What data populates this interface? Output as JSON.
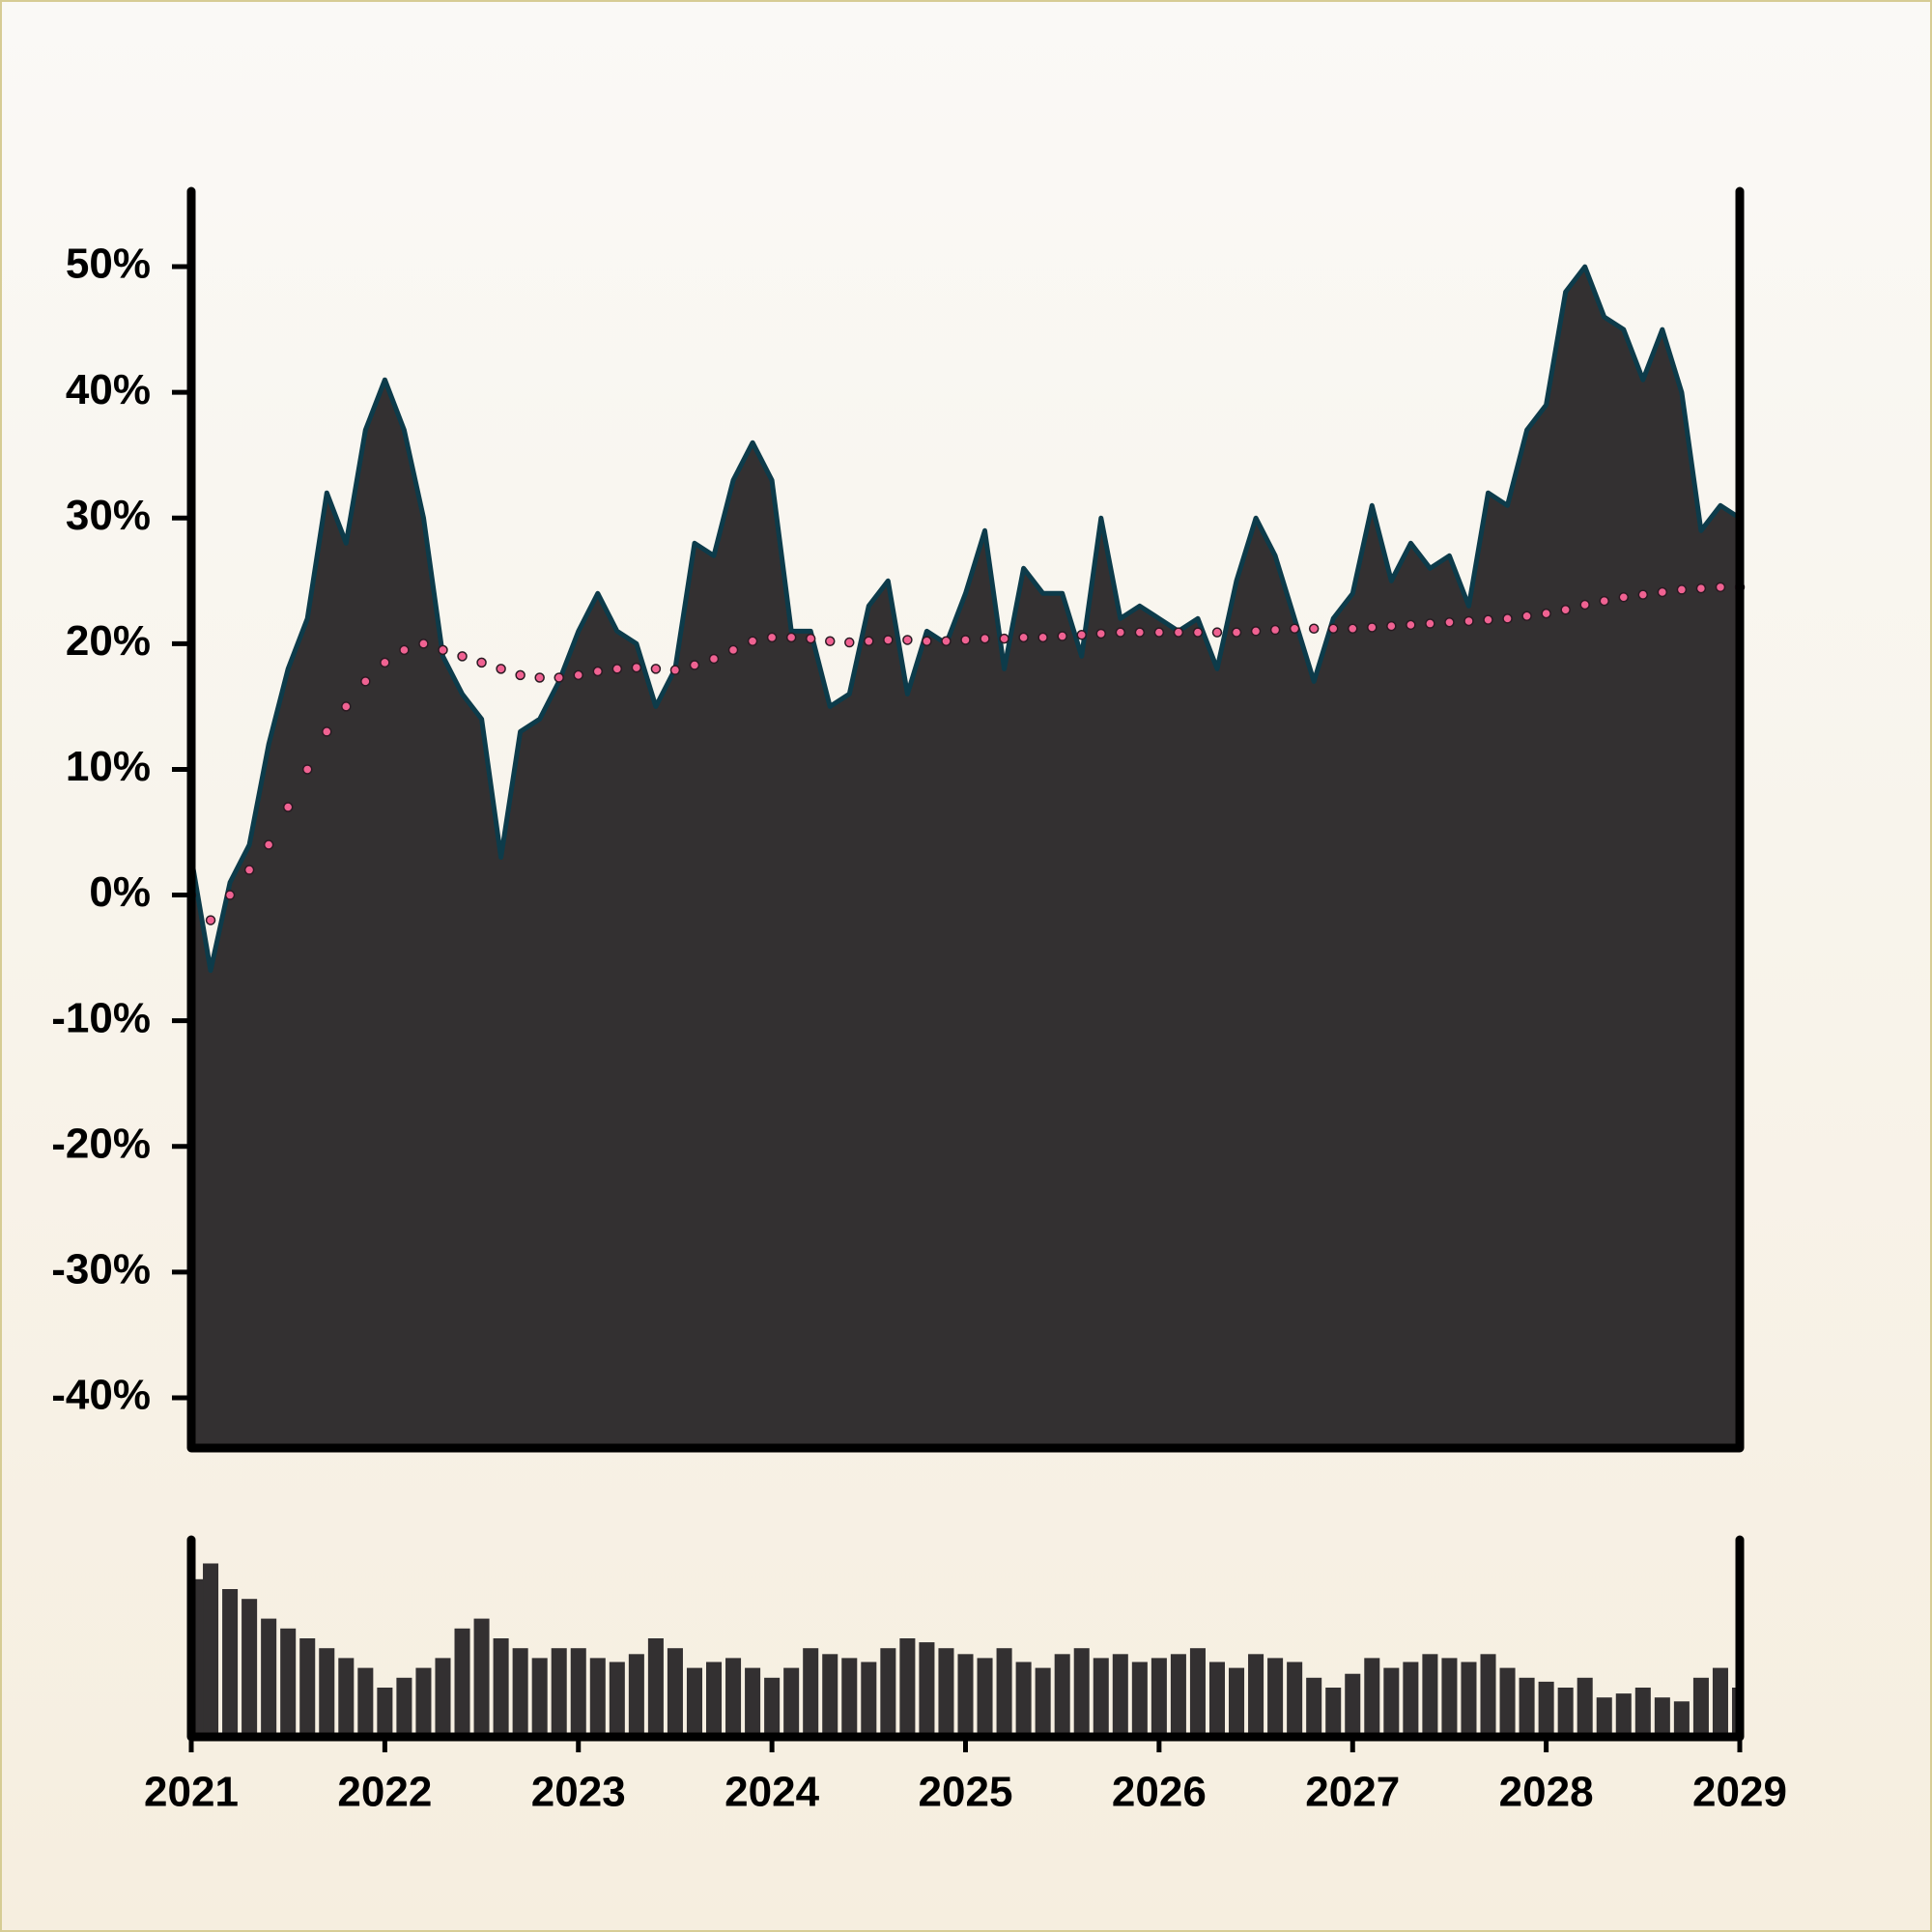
{
  "chart_data": [
    {
      "type": "area",
      "x": [
        2021.0,
        2021.1,
        2021.2,
        2021.3,
        2021.4,
        2021.5,
        2021.6,
        2021.7,
        2021.8,
        2021.9,
        2022.0,
        2022.1,
        2022.2,
        2022.3,
        2022.4,
        2022.5,
        2022.6,
        2022.7,
        2022.8,
        2022.9,
        2023.0,
        2023.1,
        2023.2,
        2023.3,
        2023.4,
        2023.5,
        2023.6,
        2023.7,
        2023.8,
        2023.9,
        2024.0,
        2024.1,
        2024.2,
        2024.3,
        2024.4,
        2024.5,
        2024.6,
        2024.7,
        2024.8,
        2024.9,
        2025.0,
        2025.1,
        2025.2,
        2025.3,
        2025.4,
        2025.5,
        2025.6,
        2025.7,
        2025.8,
        2025.9,
        2026.0,
        2026.1,
        2026.2,
        2026.3,
        2026.4,
        2026.5,
        2026.6,
        2026.7,
        2026.8,
        2026.9,
        2027.0,
        2027.1,
        2027.2,
        2027.3,
        2027.4,
        2027.5,
        2027.6,
        2027.7,
        2027.8,
        2027.9,
        2028.0,
        2028.1,
        2028.2,
        2028.3,
        2028.4,
        2028.5,
        2028.6,
        2028.7,
        2028.8,
        2028.9,
        2029.0
      ],
      "series": [
        {
          "type": "area",
          "color": "#0d3b4a",
          "fill": "#333031",
          "values": [
            3,
            -6,
            1,
            4,
            12,
            18,
            22,
            32,
            28,
            37,
            41,
            37,
            30,
            19,
            16,
            14,
            3,
            13,
            14,
            17,
            21,
            24,
            21,
            20,
            15,
            18,
            28,
            27,
            33,
            36,
            33,
            21,
            21,
            15,
            16,
            23,
            25,
            16,
            21,
            20,
            24,
            29,
            18,
            26,
            24,
            24,
            19,
            30,
            22,
            23,
            22,
            21,
            22,
            18,
            25,
            30,
            27,
            22,
            17,
            22,
            24,
            31,
            25,
            28,
            26,
            27,
            23,
            32,
            31,
            37,
            39,
            48,
            50,
            46,
            45,
            41,
            45,
            40,
            29,
            31,
            30
          ]
        },
        {
          "type": "dots",
          "color": "#f06292",
          "values": [
            0,
            -2,
            0,
            2,
            4,
            7,
            10,
            13,
            15,
            17,
            18.5,
            19.5,
            20,
            19.5,
            19,
            18.5,
            18,
            17.5,
            17.3,
            17.3,
            17.5,
            17.8,
            18,
            18.1,
            18,
            17.9,
            18.3,
            18.8,
            19.5,
            20.2,
            20.5,
            20.5,
            20.4,
            20.2,
            20.1,
            20.2,
            20.3,
            20.3,
            20.2,
            20.2,
            20.3,
            20.4,
            20.4,
            20.5,
            20.5,
            20.6,
            20.7,
            20.8,
            20.9,
            20.9,
            20.9,
            20.9,
            20.9,
            20.9,
            20.9,
            21,
            21.1,
            21.2,
            21.2,
            21.2,
            21.2,
            21.3,
            21.4,
            21.5,
            21.6,
            21.7,
            21.8,
            21.9,
            22,
            22.2,
            22.4,
            22.7,
            23.1,
            23.4,
            23.7,
            23.9,
            24.1,
            24.3,
            24.4,
            24.5,
            24.5
          ]
        }
      ],
      "xlim": [
        2021,
        2029
      ],
      "ylim": [
        -44,
        56
      ],
      "yticks": [
        {
          "value": -40,
          "label": "-40%"
        },
        {
          "value": -30,
          "label": "-30%"
        },
        {
          "value": -20,
          "label": "-20%"
        },
        {
          "value": -10,
          "label": "-10%"
        },
        {
          "value": 0,
          "label": "0%"
        },
        {
          "value": 10,
          "label": "10%"
        },
        {
          "value": 20,
          "label": "20%"
        },
        {
          "value": 30,
          "label": "30%"
        },
        {
          "value": 40,
          "label": "40%"
        },
        {
          "value": 50,
          "label": "50%"
        }
      ]
    },
    {
      "type": "bar",
      "x": [
        2021.0,
        2021.1,
        2021.2,
        2021.3,
        2021.4,
        2021.5,
        2021.6,
        2021.7,
        2021.8,
        2021.9,
        2022.0,
        2022.1,
        2022.2,
        2022.3,
        2022.4,
        2022.5,
        2022.6,
        2022.7,
        2022.8,
        2022.9,
        2023.0,
        2023.1,
        2023.2,
        2023.3,
        2023.4,
        2023.5,
        2023.6,
        2023.7,
        2023.8,
        2023.9,
        2024.0,
        2024.1,
        2024.2,
        2024.3,
        2024.4,
        2024.5,
        2024.6,
        2024.7,
        2024.8,
        2024.9,
        2025.0,
        2025.1,
        2025.2,
        2025.3,
        2025.4,
        2025.5,
        2025.6,
        2025.7,
        2025.8,
        2025.9,
        2026.0,
        2026.1,
        2026.2,
        2026.3,
        2026.4,
        2026.5,
        2026.6,
        2026.7,
        2026.8,
        2026.9,
        2027.0,
        2027.1,
        2027.2,
        2027.3,
        2027.4,
        2027.5,
        2027.6,
        2027.7,
        2027.8,
        2027.9,
        2028.0,
        2028.1,
        2028.2,
        2028.3,
        2028.4,
        2028.5,
        2028.6,
        2028.7,
        2028.8,
        2028.9,
        2029.0
      ],
      "values": [
        80,
        88,
        75,
        70,
        60,
        55,
        50,
        45,
        40,
        35,
        25,
        30,
        35,
        40,
        55,
        60,
        50,
        45,
        40,
        45,
        45,
        40,
        38,
        42,
        50,
        45,
        35,
        38,
        40,
        35,
        30,
        35,
        45,
        42,
        40,
        38,
        45,
        50,
        48,
        45,
        42,
        40,
        45,
        38,
        35,
        42,
        45,
        40,
        42,
        38,
        40,
        42,
        45,
        38,
        35,
        42,
        40,
        38,
        30,
        25,
        32,
        40,
        35,
        38,
        42,
        40,
        38,
        42,
        35,
        30,
        28,
        25,
        30,
        20,
        22,
        25,
        20,
        18,
        30,
        35,
        25
      ],
      "color": "#333031",
      "xlim": [
        2021,
        2029
      ],
      "ylim": [
        0,
        100
      ],
      "xticks": [
        2021,
        2022,
        2023,
        2024,
        2025,
        2026,
        2027,
        2028,
        2029
      ]
    }
  ]
}
